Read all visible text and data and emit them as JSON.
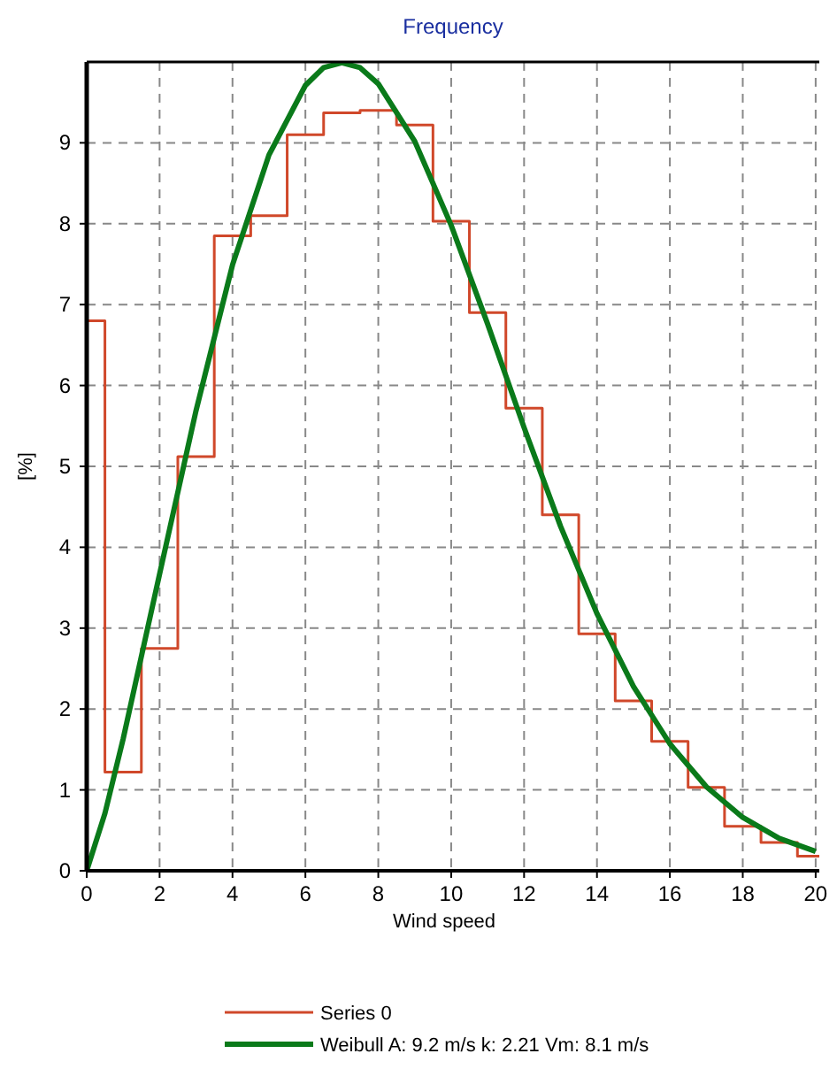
{
  "chart_data": {
    "type": "line",
    "title": "Frequency",
    "xlabel": "Wind speed",
    "ylabel": "[%]",
    "xlim": [
      0,
      20.1
    ],
    "ylim": [
      0,
      10
    ],
    "xticks": [
      0,
      2,
      4,
      6,
      8,
      10,
      12,
      14,
      16,
      18,
      20
    ],
    "yticks": [
      0,
      1,
      2,
      3,
      4,
      5,
      6,
      7,
      8,
      9
    ],
    "grid": true,
    "legend": "bottom",
    "marker": "none",
    "series": [
      {
        "name": "Series 0",
        "type": "step",
        "color": "#d0482a",
        "x": [
          0,
          0.5,
          1.5,
          2.5,
          3.5,
          4.5,
          5.5,
          6.5,
          7.5,
          8.5,
          9.5,
          10.5,
          11.5,
          12.5,
          13.5,
          14.5,
          15.5,
          16.5,
          17.5,
          18.5,
          19.5,
          20.1
        ],
        "values": [
          6.8,
          1.22,
          2.75,
          5.12,
          7.85,
          8.1,
          9.1,
          9.37,
          9.4,
          9.22,
          8.03,
          6.9,
          5.72,
          4.4,
          2.93,
          2.1,
          1.6,
          1.03,
          0.55,
          0.35,
          0.18,
          0.18
        ]
      },
      {
        "name": "Weibull A: 9.2 m/s k: 2.21 Vm: 8.1 m/s",
        "color": "#0a7a1a",
        "x": [
          0,
          0.5,
          1,
          2,
          3,
          4,
          5,
          6,
          6.5,
          7,
          7.5,
          8,
          9,
          10,
          11,
          12,
          13,
          14,
          15,
          16,
          17,
          18,
          19,
          20
        ],
        "values": [
          0,
          0.71,
          1.63,
          3.67,
          5.69,
          7.49,
          8.85,
          9.71,
          9.93,
          9.99,
          9.93,
          9.73,
          9.02,
          7.98,
          6.76,
          5.48,
          4.26,
          3.18,
          2.28,
          1.57,
          1.04,
          0.66,
          0.4,
          0.24
        ]
      }
    ]
  }
}
